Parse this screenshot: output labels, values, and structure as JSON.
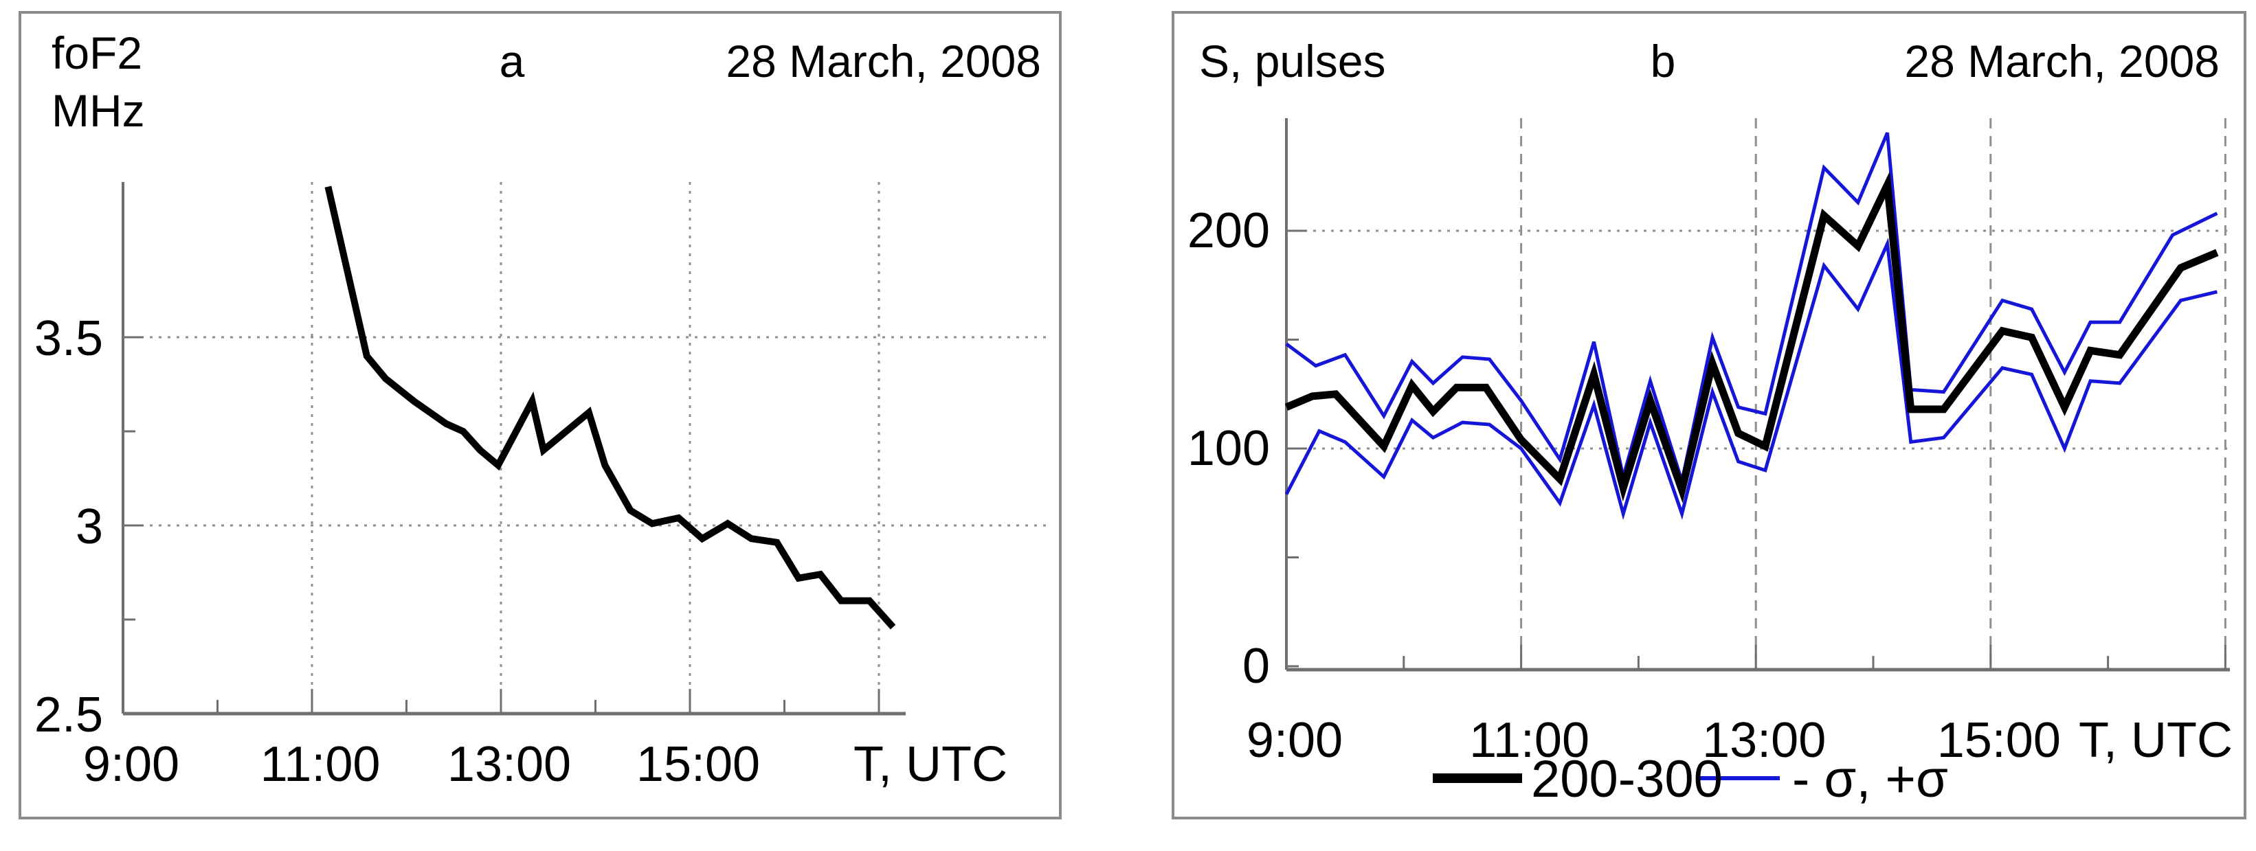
{
  "figure": {
    "background": "#ffffff",
    "border_color": "#8c8c8c",
    "axis_color": "#6f6f6f",
    "grid_color": "#8f8f8f"
  },
  "panels": [
    {
      "id": "a",
      "panel_label": "a",
      "date_label": "28 March, 2008",
      "ylabel_lines": [
        "foF2",
        "MHz"
      ],
      "xlabel": "T, UTC"
    },
    {
      "id": "b",
      "panel_label": "b",
      "date_label": "28 March, 2008",
      "ylabel": "S, pulses",
      "xlabel": "T, UTC",
      "legend": [
        {
          "label": "200-300",
          "color": "#000000",
          "thick": true
        },
        {
          "label": "- σ, +σ",
          "color": "#1616d9",
          "thick": false
        }
      ]
    }
  ],
  "chart_data": [
    {
      "type": "line",
      "panel": "a",
      "title": "foF2 MHz, 28 March, 2008",
      "xlabel": "T, UTC",
      "ylabel": "foF2, MHz",
      "xlim": [
        9.0,
        17.3
      ],
      "ylim": [
        2.5,
        3.95
      ],
      "grid": true,
      "x_ticks": [
        {
          "t": 9,
          "label": "9:00",
          "major": false,
          "grid": false
        },
        {
          "t": 10,
          "major": false,
          "grid": false
        },
        {
          "t": 11,
          "label": "11:00",
          "major": true,
          "grid": true
        },
        {
          "t": 12,
          "major": false,
          "grid": false
        },
        {
          "t": 13,
          "label": "13:00",
          "major": true,
          "grid": true
        },
        {
          "t": 14,
          "major": false,
          "grid": false
        },
        {
          "t": 15,
          "label": "15:00",
          "major": true,
          "grid": true
        },
        {
          "t": 16,
          "major": false,
          "grid": false
        },
        {
          "t": 17,
          "major": true,
          "grid": true
        }
      ],
      "y_ticks": [
        {
          "v": 3.5,
          "label": "3.5",
          "major": true,
          "grid": true
        },
        {
          "v": 3.25,
          "major": false,
          "grid": false
        },
        {
          "v": 3.0,
          "label": "3",
          "major": true,
          "grid": true
        },
        {
          "v": 2.75,
          "major": false,
          "grid": false
        },
        {
          "v": 2.5,
          "label": "2.5",
          "major": false,
          "grid": false
        }
      ],
      "series": [
        {
          "name": "foF2",
          "color": "#000000",
          "width": 10,
          "points": [
            [
              11.17,
              3.9
            ],
            [
              11.58,
              3.45
            ],
            [
              11.78,
              3.39
            ],
            [
              12.08,
              3.33
            ],
            [
              12.42,
              3.27
            ],
            [
              12.6,
              3.25
            ],
            [
              12.78,
              3.2
            ],
            [
              12.97,
              3.16
            ],
            [
              13.33,
              3.33
            ],
            [
              13.45,
              3.2
            ],
            [
              13.93,
              3.3
            ],
            [
              14.1,
              3.16
            ],
            [
              14.37,
              3.04
            ],
            [
              14.6,
              3.005
            ],
            [
              14.88,
              3.02
            ],
            [
              15.13,
              2.965
            ],
            [
              15.4,
              3.005
            ],
            [
              15.65,
              2.965
            ],
            [
              15.92,
              2.955
            ],
            [
              16.15,
              2.86
            ],
            [
              16.38,
              2.87
            ],
            [
              16.6,
              2.8
            ],
            [
              16.9,
              2.8
            ],
            [
              17.15,
              2.73
            ]
          ]
        }
      ]
    },
    {
      "type": "line",
      "panel": "b",
      "title": "S, pulses, 28 March, 2008",
      "xlabel": "T, UTC",
      "ylabel": "S, pulses",
      "xlim": [
        9.0,
        17.3
      ],
      "ylim": [
        0,
        252
      ],
      "grid": true,
      "legend_position": "bottom",
      "x_ticks": [
        {
          "t": 9,
          "label": "9:00",
          "major": false,
          "grid": false
        },
        {
          "t": 10,
          "major": false,
          "grid": false
        },
        {
          "t": 11,
          "label": "11:00",
          "major": true,
          "grid": true
        },
        {
          "t": 12,
          "major": false,
          "grid": false
        },
        {
          "t": 13,
          "label": "13:00",
          "major": true,
          "grid": true
        },
        {
          "t": 14,
          "major": false,
          "grid": false
        },
        {
          "t": 15,
          "label": "15:00",
          "major": true,
          "grid": true
        },
        {
          "t": 16,
          "major": false,
          "grid": false
        },
        {
          "t": 17,
          "major": true,
          "grid": true
        }
      ],
      "y_ticks": [
        {
          "v": 0,
          "label": "0",
          "major": false,
          "grid": false
        },
        {
          "v": 50,
          "major": false,
          "grid": false
        },
        {
          "v": 100,
          "label": "100",
          "major": true,
          "grid": true
        },
        {
          "v": 150,
          "major": false,
          "grid": false
        },
        {
          "v": 200,
          "label": "200",
          "major": true,
          "grid": true
        }
      ],
      "series": [
        {
          "name": "minus-sigma",
          "color": "#1616d9",
          "width": 5,
          "points": [
            [
              9.0,
              79
            ],
            [
              9.28,
              108
            ],
            [
              9.5,
              103
            ],
            [
              9.83,
              87
            ],
            [
              10.07,
              113
            ],
            [
              10.25,
              105
            ],
            [
              10.5,
              112
            ],
            [
              10.73,
              111
            ],
            [
              11.0,
              100
            ],
            [
              11.33,
              75
            ],
            [
              11.62,
              120
            ],
            [
              11.87,
              70
            ],
            [
              12.1,
              112
            ],
            [
              12.37,
              70
            ],
            [
              12.63,
              126
            ],
            [
              12.85,
              94
            ],
            [
              13.08,
              90
            ],
            [
              13.58,
              184
            ],
            [
              13.87,
              164
            ],
            [
              14.12,
              194
            ],
            [
              14.32,
              103
            ],
            [
              14.6,
              105
            ],
            [
              15.1,
              137
            ],
            [
              15.35,
              134
            ],
            [
              15.63,
              100
            ],
            [
              15.85,
              131
            ],
            [
              16.1,
              130
            ],
            [
              16.62,
              168
            ],
            [
              16.93,
              172
            ]
          ]
        },
        {
          "name": "plus-sigma",
          "color": "#1616d9",
          "width": 5,
          "points": [
            [
              9.0,
              148
            ],
            [
              9.25,
              138
            ],
            [
              9.5,
              143
            ],
            [
              9.83,
              115
            ],
            [
              10.07,
              140
            ],
            [
              10.25,
              130
            ],
            [
              10.5,
              142
            ],
            [
              10.73,
              141
            ],
            [
              11.0,
              122
            ],
            [
              11.33,
              95
            ],
            [
              11.62,
              149
            ],
            [
              11.87,
              87
            ],
            [
              12.1,
              131
            ],
            [
              12.37,
              85
            ],
            [
              12.63,
              151
            ],
            [
              12.85,
              119
            ],
            [
              13.08,
              116
            ],
            [
              13.58,
              229
            ],
            [
              13.87,
              213
            ],
            [
              14.12,
              245
            ],
            [
              14.32,
              127
            ],
            [
              14.6,
              126
            ],
            [
              15.1,
              168
            ],
            [
              15.35,
              164
            ],
            [
              15.63,
              135
            ],
            [
              15.85,
              158
            ],
            [
              16.1,
              158
            ],
            [
              16.55,
              198
            ],
            [
              16.93,
              208
            ]
          ]
        },
        {
          "name": "200-300",
          "color": "#000000",
          "width": 11,
          "points": [
            [
              9.0,
              119
            ],
            [
              9.22,
              124
            ],
            [
              9.42,
              125
            ],
            [
              9.83,
              101
            ],
            [
              10.07,
              129
            ],
            [
              10.25,
              117
            ],
            [
              10.45,
              128
            ],
            [
              10.7,
              128
            ],
            [
              11.0,
              104
            ],
            [
              11.33,
              86
            ],
            [
              11.62,
              134
            ],
            [
              11.87,
              82
            ],
            [
              12.1,
              122
            ],
            [
              12.37,
              81
            ],
            [
              12.63,
              139
            ],
            [
              12.85,
              107
            ],
            [
              13.08,
              101
            ],
            [
              13.58,
              207
            ],
            [
              13.87,
              193
            ],
            [
              14.12,
              221
            ],
            [
              14.32,
              118
            ],
            [
              14.6,
              118
            ],
            [
              15.1,
              154
            ],
            [
              15.35,
              151
            ],
            [
              15.63,
              119
            ],
            [
              15.85,
              145
            ],
            [
              16.1,
              143
            ],
            [
              16.62,
              183
            ],
            [
              16.93,
              190
            ]
          ]
        }
      ]
    }
  ]
}
